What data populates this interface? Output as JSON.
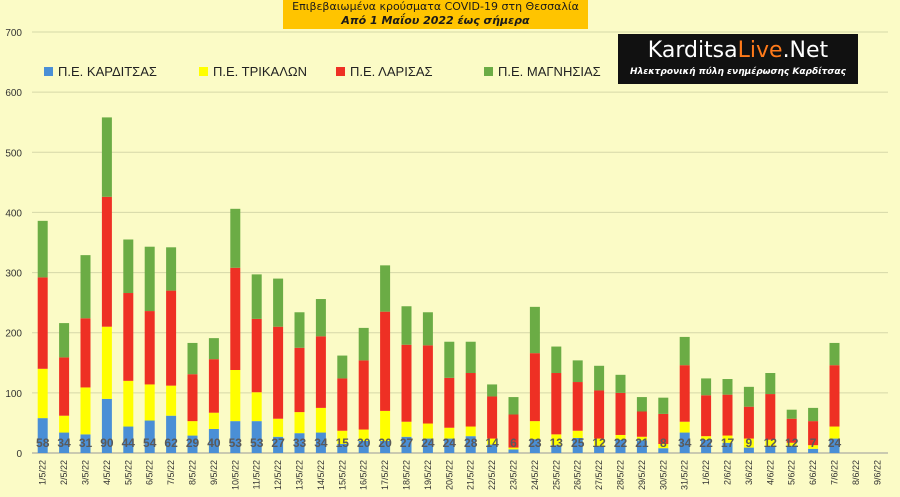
{
  "title": {
    "line1": "Επιβεβαιωμένα κρούσματα COVID-19 στη Θεσσαλία",
    "line2": "Από 1 Μαΐου 2022 έως σήμερα"
  },
  "logo": {
    "brand_main": "Karditsa",
    "brand_live": "Live",
    "brand_tld": ".Net",
    "tagline": "Ηλεκτρονική πύλη ενημέρωσης Καρδίτσας"
  },
  "chart_data": {
    "type": "bar",
    "stacked": true,
    "title": "Επιβεβαιωμένα κρούσματα COVID-19 στη Θεσσαλία",
    "subtitle": "Από 1 Μαΐου 2022 έως σήμερα",
    "xlabel": "",
    "ylabel": "",
    "ylim": [
      0,
      700
    ],
    "yticks": [
      0,
      100,
      200,
      300,
      400,
      500,
      600,
      700
    ],
    "grid": true,
    "legend_position": "top-left",
    "categories": [
      "1/5/22",
      "2/5/22",
      "3/5/22",
      "4/5/22",
      "5/5/22",
      "6/5/22",
      "7/5/22",
      "8/5/22",
      "9/5/22",
      "10/5/22",
      "11/5/22",
      "12/5/22",
      "13/5/22",
      "14/5/22",
      "15/5/22",
      "16/5/22",
      "17/5/22",
      "18/5/22",
      "19/5/22",
      "20/5/22",
      "21/5/22",
      "22/5/22",
      "23/5/22",
      "24/5/22",
      "25/5/22",
      "26/5/22",
      "27/5/22",
      "28/5/22",
      "29/5/22",
      "30/5/22",
      "31/5/22",
      "1/6/22",
      "2/6/22",
      "3/6/22",
      "4/6/22",
      "5/6/22",
      "6/6/22",
      "7/6/22",
      "8/6/22",
      "9/6/22"
    ],
    "data_labels_series": 0,
    "series": [
      {
        "name": "Π.Ε. ΚΑΡΔΙΤΣΑΣ",
        "color": "#4a8fd6",
        "values": [
          58,
          34,
          31,
          90,
          44,
          54,
          62,
          29,
          40,
          53,
          53,
          27,
          33,
          34,
          15,
          20,
          20,
          27,
          24,
          24,
          28,
          14,
          6,
          23,
          13,
          25,
          12,
          22,
          21,
          8,
          34,
          22,
          17,
          9,
          12,
          12,
          7,
          24,
          null,
          null
        ]
      },
      {
        "name": "Π.Ε. ΤΡΙΚΑΛΩΝ",
        "color": "#ffff00",
        "values": [
          82,
          28,
          78,
          120,
          76,
          60,
          50,
          24,
          27,
          85,
          48,
          30,
          35,
          41,
          22,
          19,
          50,
          25,
          25,
          18,
          16,
          10,
          3,
          30,
          18,
          12,
          12,
          8,
          6,
          7,
          18,
          6,
          12,
          15,
          10,
          5,
          6,
          20,
          null,
          null
        ]
      },
      {
        "name": "Π.Ε. ΛΑΡΙΣΑΣ",
        "color": "#ee3024",
        "values": [
          152,
          97,
          115,
          216,
          146,
          122,
          158,
          78,
          89,
          170,
          122,
          153,
          107,
          119,
          87,
          115,
          165,
          128,
          130,
          83,
          89,
          70,
          55,
          113,
          102,
          81,
          80,
          70,
          42,
          50,
          94,
          68,
          68,
          53,
          76,
          40,
          40,
          102,
          null,
          null
        ]
      },
      {
        "name": "Π.Ε. ΜΑΓΝΗΣΙΑΣ",
        "color": "#6bac45",
        "values": [
          94,
          57,
          105,
          132,
          89,
          107,
          72,
          52,
          35,
          98,
          74,
          80,
          59,
          62,
          38,
          54,
          77,
          64,
          55,
          60,
          52,
          20,
          29,
          77,
          44,
          36,
          41,
          30,
          24,
          27,
          47,
          28,
          26,
          33,
          35,
          15,
          22,
          37,
          null,
          null
        ]
      }
    ]
  }
}
